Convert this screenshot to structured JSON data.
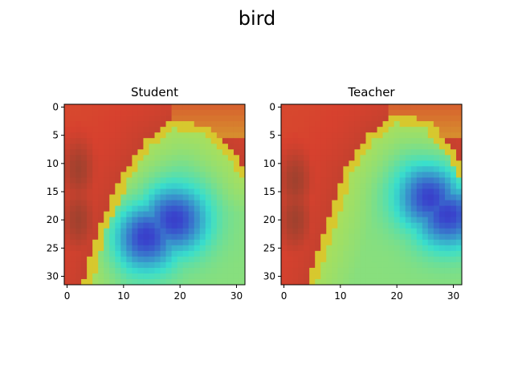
{
  "chart_data": {
    "type": "heatmap",
    "title": "bird",
    "panels": [
      {
        "title": "Student",
        "xlim": [
          -0.5,
          31.5
        ],
        "ylim": [
          31.5,
          -0.5
        ],
        "xticks": [
          0,
          10,
          20,
          30
        ],
        "yticks": [
          0,
          5,
          10,
          15,
          20,
          25,
          30
        ],
        "hot_centers": [
          [
            2,
            11
          ],
          [
            2,
            20
          ]
        ],
        "ridge": [
          [
            4.5,
            31
          ],
          [
            7,
            22
          ],
          [
            11,
            13
          ],
          [
            15,
            7
          ],
          [
            19,
            4
          ],
          [
            24,
            5
          ],
          [
            29,
            10
          ],
          [
            31,
            13
          ]
        ],
        "cold_centers": [
          [
            19,
            20
          ],
          [
            14,
            23
          ]
        ],
        "base_level": 0.78
      },
      {
        "title": "Teacher",
        "xlim": [
          -0.5,
          31.5
        ],
        "ylim": [
          31.5,
          -0.5
        ],
        "xticks": [
          0,
          10,
          20,
          30
        ],
        "yticks": [
          0,
          5,
          10,
          15,
          20,
          25,
          30
        ],
        "hot_centers": [
          [
            2,
            13
          ],
          [
            2,
            20
          ]
        ],
        "ridge": [
          [
            6,
            31
          ],
          [
            9,
            22
          ],
          [
            12,
            12
          ],
          [
            16,
            6
          ],
          [
            20,
            3
          ],
          [
            25,
            4
          ],
          [
            29,
            9
          ],
          [
            31,
            13
          ]
        ],
        "cold_centers": [
          [
            29,
            19
          ],
          [
            26,
            16
          ]
        ],
        "base_level": 0.7
      }
    ]
  }
}
